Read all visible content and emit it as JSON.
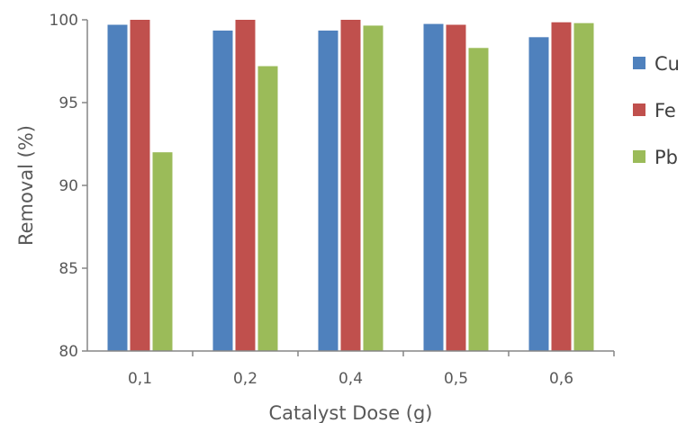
{
  "chart_data": {
    "type": "bar",
    "title": "",
    "xlabel": "Catalyst Dose (g)",
    "ylabel": "Removal (%)",
    "categories": [
      "0,1",
      "0,2",
      "0,4",
      "0,5",
      "0,6"
    ],
    "ylim": [
      80,
      100
    ],
    "yticks": [
      80,
      85,
      90,
      95,
      100
    ],
    "grid": false,
    "legend_position": "right",
    "series": [
      {
        "name": "Cu",
        "color": "#4f81bd",
        "values": [
          99.7,
          99.35,
          99.35,
          99.75,
          98.95
        ]
      },
      {
        "name": "Fe",
        "color": "#c0504d",
        "values": [
          100.0,
          100.0,
          100.0,
          99.7,
          99.85
        ]
      },
      {
        "name": "Pb",
        "color": "#9bbb59",
        "values": [
          92.0,
          97.2,
          99.65,
          98.3,
          99.8
        ]
      }
    ]
  }
}
